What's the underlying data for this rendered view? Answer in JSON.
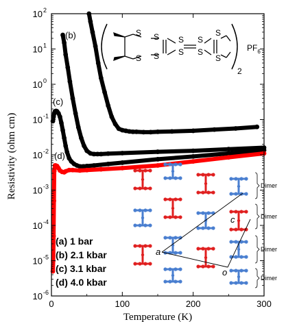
{
  "chart_data": {
    "type": "scatter",
    "title": "",
    "xlabel": "Temperature (K)",
    "ylabel": "Resistivity (ohm cm)",
    "xlim": [
      0,
      300
    ],
    "ylim_log10": [
      -6,
      2
    ],
    "y_scale": "log",
    "x_ticks": [
      {
        "value": 0,
        "label": "0"
      },
      {
        "value": 100,
        "label": "100"
      },
      {
        "value": 200,
        "label": "200"
      },
      {
        "value": 300,
        "label": "300"
      }
    ],
    "y_ticks": [
      {
        "exp": -6,
        "base": "10",
        "sup": "-6"
      },
      {
        "exp": -5,
        "base": "10",
        "sup": "-5"
      },
      {
        "exp": -4,
        "base": "10",
        "sup": "-4"
      },
      {
        "exp": -3,
        "base": "10",
        "sup": "-3"
      },
      {
        "exp": -2,
        "base": "10",
        "sup": "-2"
      },
      {
        "exp": -1,
        "base": "10",
        "sup": "-1"
      },
      {
        "exp": 0,
        "base": "10",
        "sup": "0"
      },
      {
        "exp": 1,
        "base": "10",
        "sup": "1"
      },
      {
        "exp": 2,
        "base": "10",
        "sup": "2"
      }
    ],
    "grid": false,
    "legend": [
      {
        "label": "(a) 1 bar"
      },
      {
        "label": "(b) 2.1 kbar"
      },
      {
        "label": "(c) 3.1 kbar"
      },
      {
        "label": "(d) 4.0 kbar"
      }
    ],
    "series": [
      {
        "name": "(a) 1 bar",
        "color": "#000000",
        "x": [
          53,
          55,
          58,
          62,
          66,
          70,
          75,
          80,
          85,
          90,
          95,
          100,
          105,
          110,
          115,
          120,
          130,
          140,
          150,
          170,
          200,
          230,
          260,
          290
        ],
        "y": [
          100,
          60,
          30,
          12,
          4,
          1.5,
          0.6,
          0.25,
          0.12,
          0.075,
          0.055,
          0.05,
          0.048,
          0.046,
          0.045,
          0.045,
          0.044,
          0.044,
          0.045,
          0.046,
          0.048,
          0.052,
          0.056,
          0.062
        ]
      },
      {
        "name": "(b) 2.1 kbar",
        "color": "#000000",
        "x": [
          16,
          18,
          20,
          23,
          26,
          30,
          34,
          38,
          42,
          46,
          50,
          55,
          60,
          65,
          70,
          80,
          100,
          150,
          200,
          250,
          300
        ],
        "y": [
          25,
          15,
          7,
          3,
          1.2,
          0.4,
          0.15,
          0.06,
          0.03,
          0.018,
          0.013,
          0.011,
          0.0105,
          0.0105,
          0.0105,
          0.0108,
          0.0112,
          0.0122,
          0.013,
          0.0145,
          0.016
        ]
      },
      {
        "name": "(c) 3.1 kbar",
        "color": "#000000",
        "x": [
          2,
          3,
          4,
          5,
          6,
          7,
          8,
          10,
          12,
          14,
          16,
          18,
          20,
          22,
          25,
          28,
          32,
          36,
          40,
          45,
          50,
          60,
          80,
          100,
          150,
          200,
          250,
          300
        ],
        "y": [
          0.09,
          0.12,
          0.15,
          0.17,
          0.175,
          0.175,
          0.17,
          0.15,
          0.12,
          0.08,
          0.05,
          0.03,
          0.018,
          0.012,
          0.008,
          0.0065,
          0.0055,
          0.005,
          0.0047,
          0.0047,
          0.0048,
          0.005,
          0.0055,
          0.006,
          0.0075,
          0.009,
          0.011,
          0.0135
        ]
      },
      {
        "name": "(d) 4.0 kbar",
        "color": "#ff0000",
        "x": [
          2,
          2.5,
          3,
          3.5,
          4,
          5,
          6,
          8,
          10,
          12,
          15,
          18,
          20,
          25,
          30,
          40,
          50,
          70,
          100,
          150,
          200,
          250,
          300
        ],
        "y": [
          5e-06,
          1e-05,
          5e-05,
          0.0005,
          0.0035,
          0.005,
          0.005,
          0.0048,
          0.0042,
          0.0036,
          0.0033,
          0.0032,
          0.0034,
          0.0037,
          0.0037,
          0.0036,
          0.0037,
          0.0039,
          0.0042,
          0.005,
          0.0065,
          0.0085,
          0.011
        ]
      }
    ],
    "curve_labels": [
      "(b)",
      "(c)",
      "(d)"
    ],
    "structure_label": {
      "prefix_open": "(",
      "prefix_close": ")",
      "subscript": "2",
      "anion": "PF",
      "anion_sub": "6",
      "atom": "S"
    },
    "inset": {
      "dimer_label": "Dimer",
      "axis_a": "a",
      "axis_c": "c",
      "axis_o": "o",
      "colors": {
        "red": "#e02020",
        "blue": "#4a7fd0"
      }
    }
  }
}
